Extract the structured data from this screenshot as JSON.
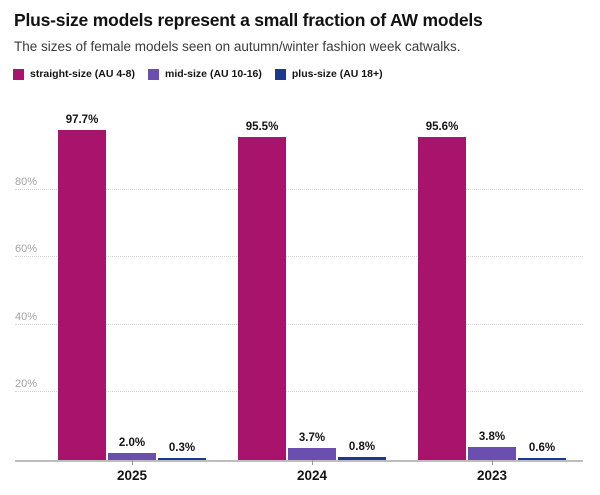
{
  "header": {
    "title": "Plus-size models represent a small fraction of AW models",
    "subtitle": "The sizes of female models seen on autumn/winter fashion week catwalks."
  },
  "legend": [
    {
      "label": "straight-size (AU 4-8)",
      "color": "#a8136b"
    },
    {
      "label": "mid-size (AU 10-16)",
      "color": "#6a4fb1"
    },
    {
      "label": "plus-size (AU 18+)",
      "color": "#1b3a8f"
    }
  ],
  "chart_data": {
    "type": "bar",
    "title": "Plus-size models represent a small fraction of AW models",
    "subtitle": "The sizes of female models seen on autumn/winter fashion week catwalks.",
    "categories": [
      "2025",
      "2024",
      "2023"
    ],
    "series": [
      {
        "name": "straight-size (AU 4-8)",
        "color": "#a8136b",
        "values": [
          97.7,
          95.5,
          95.6
        ]
      },
      {
        "name": "mid-size (AU 10-16)",
        "color": "#6a4fb1",
        "values": [
          2.0,
          3.7,
          3.8
        ]
      },
      {
        "name": "plus-size (AU 18+)",
        "color": "#1b3a8f",
        "values": [
          0.3,
          0.8,
          0.6
        ]
      }
    ],
    "value_labels": [
      [
        "97.7%",
        "2.0%",
        "0.3%"
      ],
      [
        "95.5%",
        "3.7%",
        "0.8%"
      ],
      [
        "95.6%",
        "3.8%",
        "0.6%"
      ]
    ],
    "yticks": [
      20,
      40,
      60,
      80
    ],
    "ytick_labels": [
      "20%",
      "40%",
      "60%",
      "80%"
    ],
    "ylim": [
      0,
      100
    ],
    "grid": true,
    "legend_position": "top",
    "xlabel": "",
    "ylabel": ""
  }
}
